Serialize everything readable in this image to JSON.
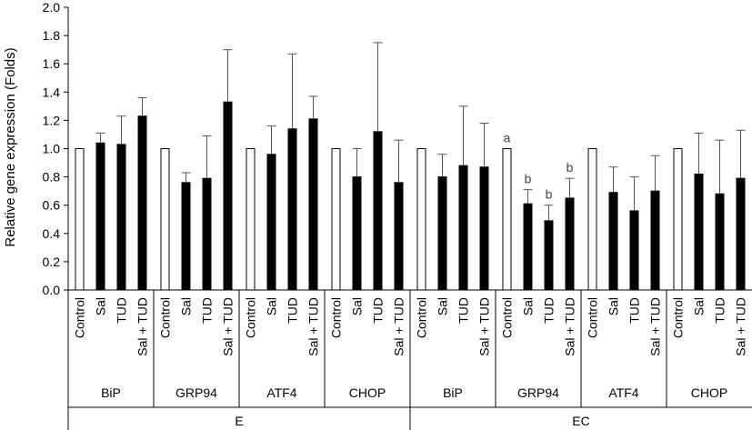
{
  "chart_data": {
    "type": "bar",
    "title": "",
    "ylabel": "Relative gene expression (Folds)",
    "ylim": [
      0,
      2.0
    ],
    "yticks": [
      0.0,
      0.2,
      0.4,
      0.6,
      0.8,
      1.0,
      1.2,
      1.4,
      1.6,
      1.8,
      2.0
    ],
    "ytick_labels": [
      "0.0",
      "0.2",
      "0.4",
      "0.6",
      "0.8",
      "1.0",
      "1.2",
      "1.4",
      "1.6",
      "1.8",
      "2.0"
    ],
    "grid": false,
    "legend": "none",
    "bar_colors": {
      "Control": "#ffffff",
      "treated": "#000000",
      "outline": "#000000"
    },
    "tissues": [
      {
        "name": "E",
        "genes": [
          {
            "name": "BiP",
            "bars": [
              {
                "label": "Control",
                "value": 1.0,
                "err": 0
              },
              {
                "label": "Sal",
                "value": 1.04,
                "err": 0.07
              },
              {
                "label": "TUD",
                "value": 1.03,
                "err": 0.2
              },
              {
                "label": "Sal + TUD",
                "value": 1.23,
                "err": 0.13
              }
            ]
          },
          {
            "name": "GRP94",
            "bars": [
              {
                "label": "Control",
                "value": 1.0,
                "err": 0
              },
              {
                "label": "Sal",
                "value": 0.76,
                "err": 0.07
              },
              {
                "label": "TUD",
                "value": 0.79,
                "err": 0.3
              },
              {
                "label": "Sal + TUD",
                "value": 1.33,
                "err": 0.37
              }
            ]
          },
          {
            "name": "ATF4",
            "bars": [
              {
                "label": "Control",
                "value": 1.0,
                "err": 0
              },
              {
                "label": "Sal",
                "value": 0.96,
                "err": 0.2
              },
              {
                "label": "TUD",
                "value": 1.14,
                "err": 0.53
              },
              {
                "label": "Sal + TUD",
                "value": 1.21,
                "err": 0.16
              }
            ]
          },
          {
            "name": "CHOP",
            "bars": [
              {
                "label": "Control",
                "value": 1.0,
                "err": 0
              },
              {
                "label": "Sal",
                "value": 0.8,
                "err": 0.2
              },
              {
                "label": "TUD",
                "value": 1.12,
                "err": 0.63
              },
              {
                "label": "Sal + TUD",
                "value": 0.76,
                "err": 0.3
              }
            ]
          }
        ]
      },
      {
        "name": "EC",
        "genes": [
          {
            "name": "BiP",
            "bars": [
              {
                "label": "Control",
                "value": 1.0,
                "err": 0
              },
              {
                "label": "Sal",
                "value": 0.8,
                "err": 0.16
              },
              {
                "label": "TUD",
                "value": 0.88,
                "err": 0.42
              },
              {
                "label": "Sal + TUD",
                "value": 0.87,
                "err": 0.31
              }
            ]
          },
          {
            "name": "GRP94",
            "bars": [
              {
                "label": "Control",
                "value": 1.0,
                "err": 0,
                "annotation": "a"
              },
              {
                "label": "Sal",
                "value": 0.61,
                "err": 0.1,
                "annotation": "b"
              },
              {
                "label": "TUD",
                "value": 0.49,
                "err": 0.11,
                "annotation": "b"
              },
              {
                "label": "Sal + TUD",
                "value": 0.65,
                "err": 0.14,
                "annotation": "b"
              }
            ]
          },
          {
            "name": "ATF4",
            "bars": [
              {
                "label": "Control",
                "value": 1.0,
                "err": 0
              },
              {
                "label": "Sal",
                "value": 0.69,
                "err": 0.18
              },
              {
                "label": "TUD",
                "value": 0.56,
                "err": 0.24
              },
              {
                "label": "Sal + TUD",
                "value": 0.7,
                "err": 0.25
              }
            ]
          },
          {
            "name": "CHOP",
            "bars": [
              {
                "label": "Control",
                "value": 1.0,
                "err": 0
              },
              {
                "label": "Sal",
                "value": 0.82,
                "err": 0.29
              },
              {
                "label": "TUD",
                "value": 0.68,
                "err": 0.38
              },
              {
                "label": "Sal + TUD",
                "value": 0.79,
                "err": 0.34
              }
            ]
          }
        ]
      }
    ]
  }
}
